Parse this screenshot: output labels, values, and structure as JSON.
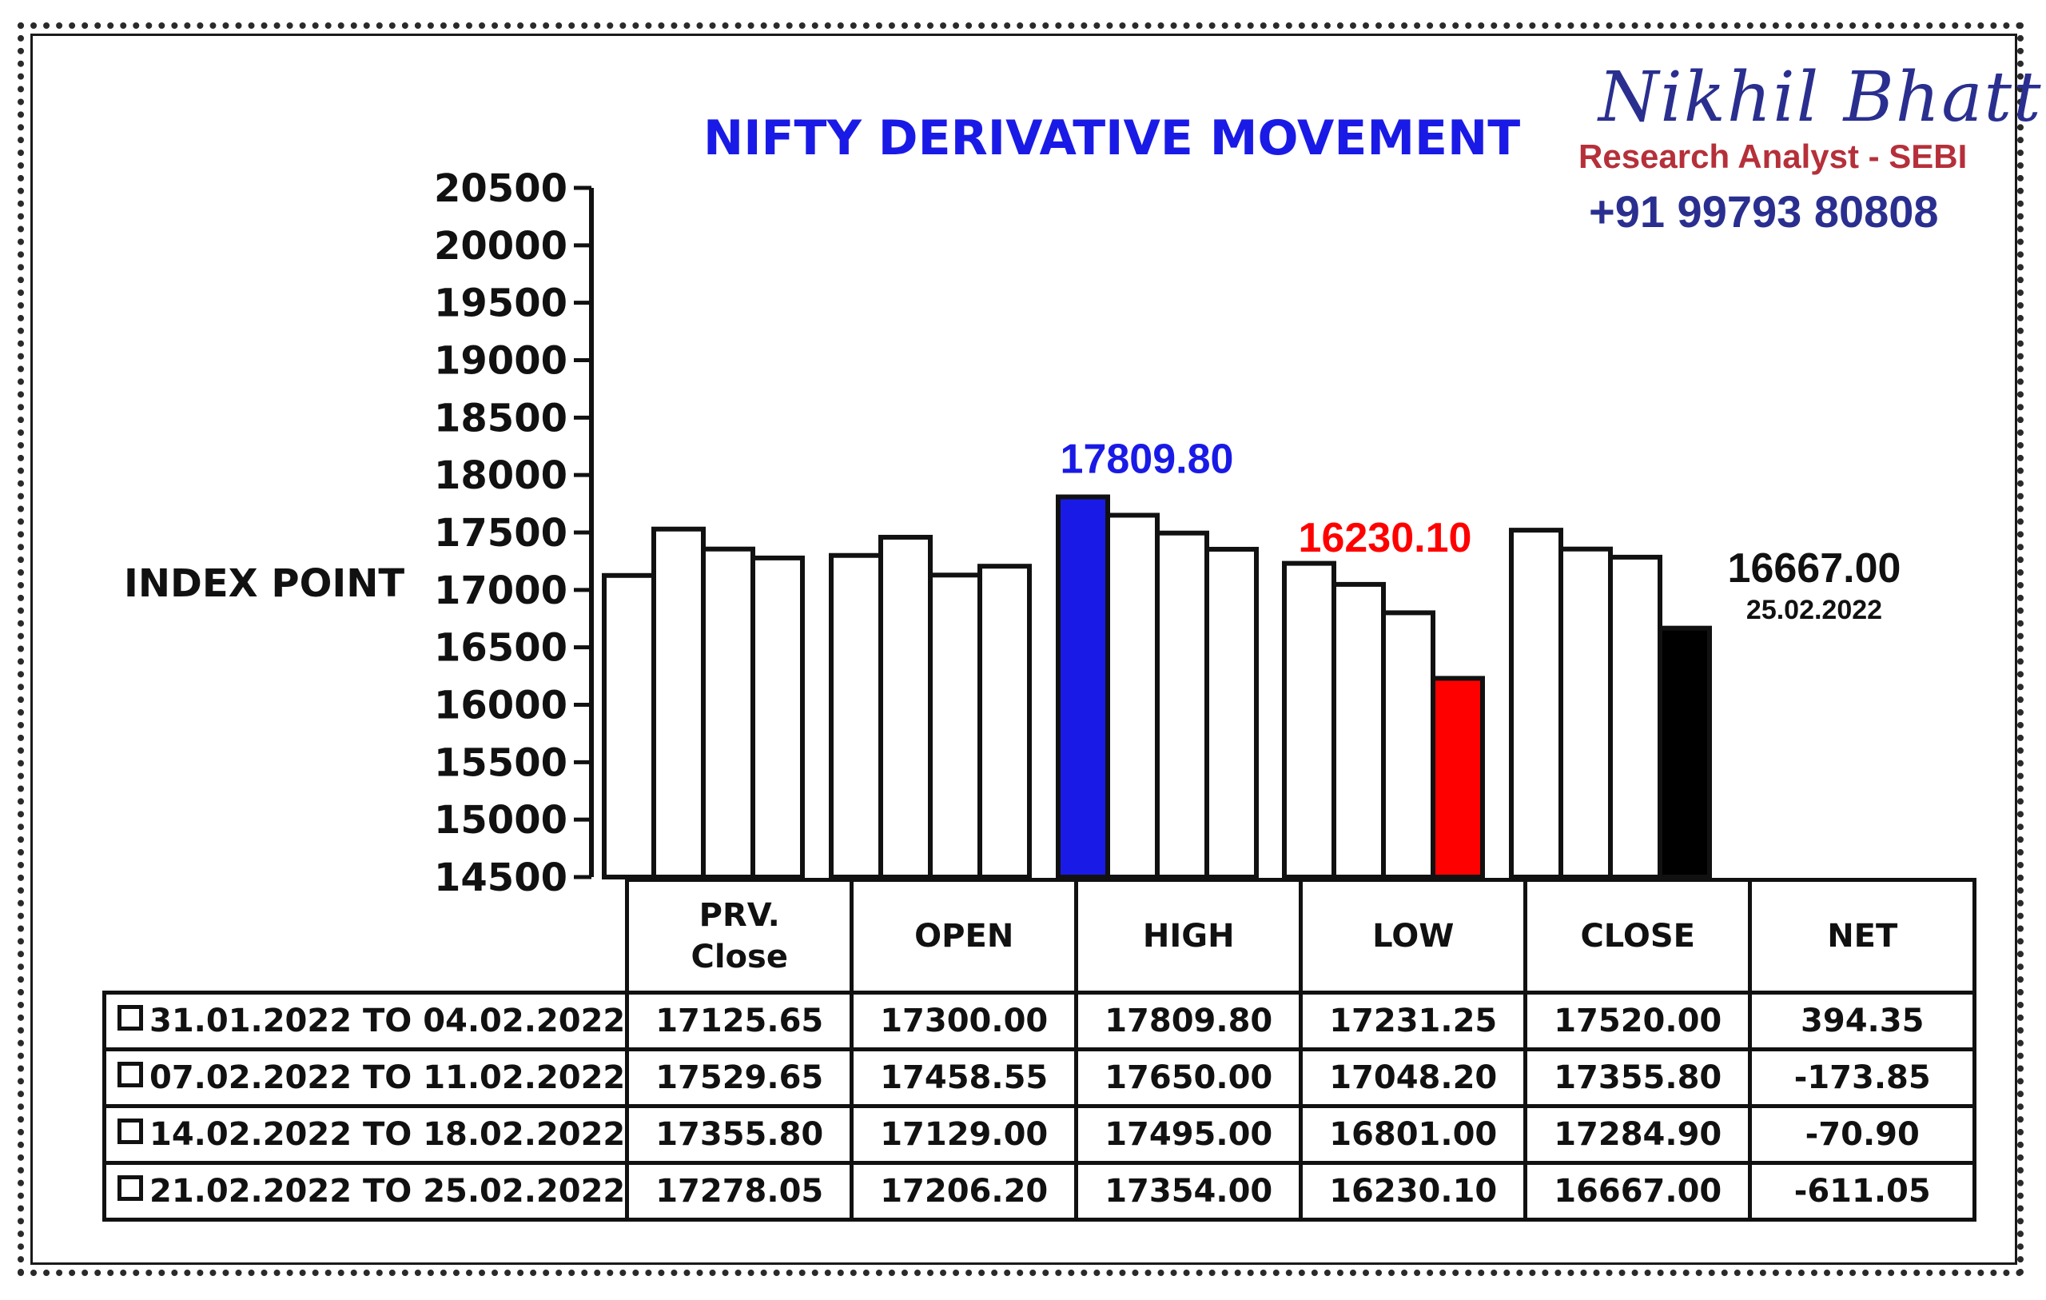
{
  "header": {
    "title": "NIFTY DERIVATIVE MOVEMENT",
    "brand_name": "Nikhil Bhatt",
    "brand_role": "Research Analyst - SEBI",
    "brand_phone": "+91 99793 80808"
  },
  "colors": {
    "title": "#1a1ae6",
    "highlight_high": "#1a1ae6",
    "highlight_low": "#ff0000",
    "highlight_close": "#000000",
    "bar_default": "#ffffff"
  },
  "chart_data": {
    "type": "bar",
    "ylabel": "INDEX POINT",
    "ylim": [
      14500,
      20500
    ],
    "yticks": [
      "20500",
      "20000",
      "19500",
      "19000",
      "18500",
      "18000",
      "17500",
      "17000",
      "16500",
      "16000",
      "15500",
      "15000",
      "14500"
    ],
    "categories": [
      "PRV. Close",
      "OPEN",
      "HIGH",
      "LOW",
      "CLOSE"
    ],
    "series": [
      {
        "values": [
          17125.65,
          17300.0,
          17809.8,
          17231.25,
          17520.0
        ]
      },
      {
        "values": [
          17529.65,
          17458.55,
          17650.0,
          17048.2,
          17355.8
        ]
      },
      {
        "values": [
          17355.8,
          17129.0,
          17495.0,
          16801.0,
          17284.9
        ]
      },
      {
        "values": [
          17278.05,
          17206.2,
          17354.0,
          16230.1,
          16667.0
        ]
      }
    ],
    "annotations": {
      "high": {
        "text": "17809.80"
      },
      "low": {
        "text": "16230.10"
      },
      "close": {
        "text": "16667.00",
        "subtext": "25.02.2022"
      }
    },
    "grid": false,
    "legend": "none"
  },
  "table": {
    "columns": [
      {
        "line1": "PRV.",
        "line2": "Close"
      },
      {
        "line1": "OPEN",
        "line2": ""
      },
      {
        "line1": "HIGH",
        "line2": ""
      },
      {
        "line1": "LOW",
        "line2": ""
      },
      {
        "line1": "CLOSE",
        "line2": ""
      },
      {
        "line1": "NET",
        "line2": ""
      }
    ],
    "rows": [
      {
        "period": "31.01.2022 TO 04.02.2022",
        "cells": [
          "17125.65",
          "17300.00",
          "17809.80",
          "17231.25",
          "17520.00",
          "394.35"
        ]
      },
      {
        "period": "07.02.2022 TO 11.02.2022",
        "cells": [
          "17529.65",
          "17458.55",
          "17650.00",
          "17048.20",
          "17355.80",
          "-173.85"
        ]
      },
      {
        "period": "14.02.2022 TO 18.02.2022",
        "cells": [
          "17355.80",
          "17129.00",
          "17495.00",
          "16801.00",
          "17284.90",
          "-70.90"
        ]
      },
      {
        "period": "21.02.2022 TO 25.02.2022",
        "cells": [
          "17278.05",
          "17206.20",
          "17354.00",
          "16230.10",
          "16667.00",
          "-611.05"
        ]
      }
    ]
  }
}
